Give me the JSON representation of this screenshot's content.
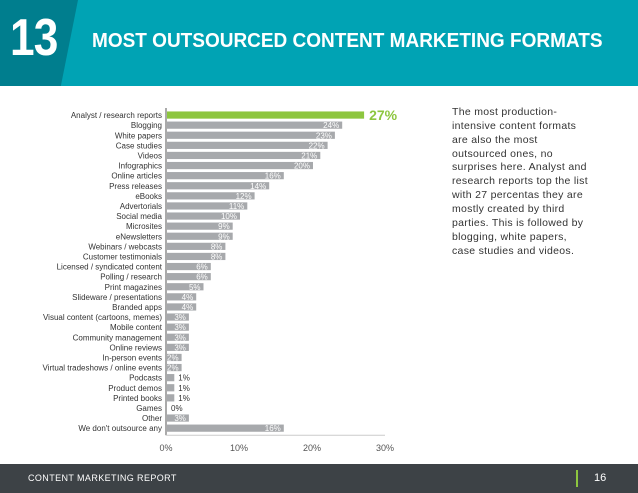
{
  "header": {
    "number": "13",
    "title": "MOST OUTSOURCED CONTENT MARKETING FORMATS"
  },
  "description": "The most production-intensive content formats are also the most outsourced ones, no surprises here. Analyst and research reports top the list with 27 percentas they are mostly created by third parties. This is followed by blogging, white papers, case studies and videos.",
  "footer": {
    "label": "CONTENT MARKETING REPORT",
    "page": "16"
  },
  "colors": {
    "header_bg": "#00a3b4",
    "number_bg": "#007e8e",
    "bar": "#a7a9ac",
    "highlight_bar": "#8dc63f",
    "footer_bg": "#3d4246"
  },
  "chart_data": {
    "type": "bar",
    "orientation": "horizontal",
    "title": "",
    "xlabel": "",
    "ylabel": "",
    "xlim": [
      0,
      30
    ],
    "x_ticks": [
      "0%",
      "10%",
      "20%",
      "30%"
    ],
    "categories": [
      "Analyst / research reports",
      "Blogging",
      "White papers",
      "Case studies",
      "Videos",
      "Infographics",
      "Online articles",
      "Press releases",
      "eBooks",
      "Advertorials",
      "Social media",
      "Microsites",
      "eNewsletters",
      "Webinars / webcasts",
      "Customer testimonials",
      "Licensed / syndicated content",
      "Polling / research",
      "Print magazines",
      "Slideware / presentations",
      "Branded apps",
      "Visual content (cartoons, memes)",
      "Mobile content",
      "Community management",
      "Online reviews",
      "In-person events",
      "Virtual tradeshows / online events",
      "Podcasts",
      "Product demos",
      "Printed books",
      "Games",
      "Other",
      "We don't outsource any"
    ],
    "values": [
      27,
      24,
      23,
      22,
      21,
      20,
      16,
      14,
      12,
      11,
      10,
      9,
      9,
      8,
      8,
      6,
      6,
      5,
      4,
      4,
      3,
      3,
      3,
      3,
      2,
      2,
      1,
      1,
      1,
      0,
      3,
      16
    ],
    "value_labels": [
      "27%",
      "24%",
      "23%",
      "22%",
      "21%",
      "20%",
      "16%",
      "14%",
      "12%",
      "11%",
      "10%",
      "9%",
      "9%",
      "8%",
      "8%",
      "6%",
      "6%",
      "5%",
      "4%",
      "4%",
      "3%",
      "3%",
      "3%",
      "3%",
      "2%",
      "2%",
      "1%",
      "1%",
      "1%",
      "0%",
      "3%",
      "16%"
    ],
    "highlight_index": 0,
    "grid": false,
    "legend": "none"
  }
}
